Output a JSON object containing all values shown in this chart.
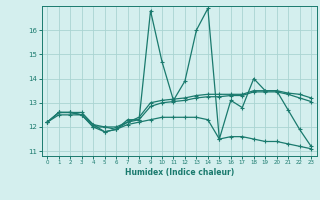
{
  "xlabel": "Humidex (Indice chaleur)",
  "bg_color": "#d4efee",
  "grid_color": "#aad4d2",
  "line_color": "#1a7a6e",
  "xlim": [
    -0.5,
    23.5
  ],
  "ylim": [
    10.8,
    17.0
  ],
  "yticks": [
    11,
    12,
    13,
    14,
    15,
    16
  ],
  "xticks": [
    0,
    1,
    2,
    3,
    4,
    5,
    6,
    7,
    8,
    9,
    10,
    11,
    12,
    13,
    14,
    15,
    16,
    17,
    18,
    19,
    20,
    21,
    22,
    23
  ],
  "lines": [
    {
      "x": [
        0,
        1,
        2,
        3,
        4,
        5,
        6,
        7,
        8,
        9,
        10,
        11,
        12,
        13,
        14,
        15,
        16,
        17,
        18,
        19,
        20,
        21,
        22,
        23
      ],
      "y": [
        12.2,
        12.6,
        12.6,
        12.6,
        12.1,
        11.8,
        11.9,
        12.3,
        12.3,
        16.8,
        14.7,
        13.1,
        13.9,
        16.0,
        16.9,
        11.5,
        13.1,
        12.8,
        14.0,
        13.5,
        13.5,
        12.7,
        11.9,
        11.2
      ]
    },
    {
      "x": [
        0,
        1,
        2,
        3,
        4,
        5,
        6,
        7,
        8,
        9,
        10,
        11,
        12,
        13,
        14,
        15,
        16,
        17,
        18,
        19,
        20,
        21,
        22,
        23
      ],
      "y": [
        12.2,
        12.6,
        12.6,
        12.5,
        12.0,
        12.0,
        11.9,
        12.2,
        12.4,
        13.0,
        13.1,
        13.15,
        13.2,
        13.3,
        13.35,
        13.35,
        13.35,
        13.35,
        13.5,
        13.5,
        13.5,
        13.4,
        13.35,
        13.2
      ]
    },
    {
      "x": [
        0,
        1,
        2,
        3,
        4,
        5,
        6,
        7,
        8,
        9,
        10,
        11,
        12,
        13,
        14,
        15,
        16,
        17,
        18,
        19,
        20,
        21,
        22,
        23
      ],
      "y": [
        12.2,
        12.6,
        12.6,
        12.5,
        12.1,
        12.0,
        12.0,
        12.2,
        12.3,
        12.85,
        13.0,
        13.05,
        13.1,
        13.2,
        13.25,
        13.25,
        13.3,
        13.3,
        13.45,
        13.45,
        13.45,
        13.35,
        13.2,
        13.05
      ]
    },
    {
      "x": [
        0,
        1,
        2,
        3,
        4,
        5,
        6,
        7,
        8,
        9,
        10,
        11,
        12,
        13,
        14,
        15,
        16,
        17,
        18,
        19,
        20,
        21,
        22,
        23
      ],
      "y": [
        12.2,
        12.5,
        12.5,
        12.5,
        12.0,
        11.8,
        11.9,
        12.1,
        12.2,
        12.3,
        12.4,
        12.4,
        12.4,
        12.4,
        12.3,
        11.5,
        11.6,
        11.6,
        11.5,
        11.4,
        11.4,
        11.3,
        11.2,
        11.1
      ]
    }
  ]
}
